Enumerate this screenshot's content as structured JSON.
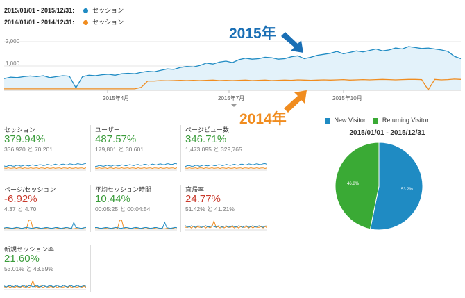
{
  "legend": [
    {
      "range": "2015/01/01 - 2015/12/31:",
      "series": "セッション",
      "color": "#1f8bc3"
    },
    {
      "range": "2014/01/01 - 2014/12/31:",
      "series": "セッション",
      "color": "#f08c1f"
    }
  ],
  "chart_data": {
    "type": "line",
    "ylim": [
      0,
      2000
    ],
    "y_ticks": [
      "2,000",
      "1,000"
    ],
    "x_ticks": [
      "2015年4月",
      "2015年7月",
      "2015年10月"
    ],
    "series": [
      {
        "name": "セッション",
        "period": "2015/01/01 - 2015/12/31",
        "color": "#1f8bc3",
        "values": [
          480,
          540,
          520,
          560,
          590,
          560,
          600,
          520,
          560,
          600,
          580,
          100,
          560,
          620,
          600,
          640,
          660,
          620,
          680,
          700,
          680,
          740,
          780,
          760,
          820,
          880,
          860,
          940,
          980,
          960,
          1020,
          1120,
          1080,
          1160,
          1200,
          1140,
          1260,
          1320,
          1280,
          1300,
          1360,
          1340,
          1280,
          1300,
          1380,
          1420,
          1300,
          1360,
          1440,
          1480,
          1520,
          1600,
          1500,
          1560,
          1620,
          1580,
          1640,
          1700,
          1620,
          1660,
          1740,
          1700,
          1800,
          1760,
          1720,
          1740,
          1700,
          1660,
          1600,
          1400,
          1300
        ]
      },
      {
        "name": "セッション",
        "period": "2014/01/01 - 2014/12/31",
        "color": "#f08c1f",
        "values": [
          60,
          60,
          60,
          60,
          60,
          60,
          60,
          60,
          60,
          60,
          60,
          60,
          60,
          60,
          60,
          60,
          60,
          60,
          60,
          60,
          60,
          120,
          380,
          380,
          400,
          390,
          400,
          410,
          400,
          410,
          400,
          410,
          420,
          400,
          410,
          400,
          410,
          420,
          400,
          410,
          420,
          400,
          410,
          420,
          410,
          430,
          420,
          410,
          420,
          430,
          420,
          430,
          440,
          420,
          430,
          440,
          430,
          440,
          450,
          440,
          430,
          440,
          450,
          450,
          440,
          20,
          450,
          430,
          440,
          460,
          450
        ]
      }
    ]
  },
  "annotations": {
    "y2015": "2015年",
    "y2014": "2014年"
  },
  "metrics": [
    {
      "name": "セッション",
      "value": "379.94%",
      "compare": "336,920 と 70,201",
      "sign": "pos"
    },
    {
      "name": "ユーザー",
      "value": "487.57%",
      "compare": "179,801 と 30,601",
      "sign": "pos"
    },
    {
      "name": "ページビュー数",
      "value": "346.71%",
      "compare": "1,473,095 と 329,765",
      "sign": "pos"
    },
    {
      "name": "ページ/セッション",
      "value": "-6.92%",
      "compare": "4.37 と 4.70",
      "sign": "neg"
    },
    {
      "name": "平均セッション時間",
      "value": "10.44%",
      "compare": "00:05:25 と 00:04:54",
      "sign": "pos"
    },
    {
      "name": "直帰率",
      "value": "24.77%",
      "compare": "51.42% と 41.21%",
      "sign": "neg"
    },
    {
      "name": "新規セッション率",
      "value": "21.60%",
      "compare": "53.01% と 43.59%",
      "sign": "pos"
    }
  ],
  "pie": {
    "title": "2015/01/01 - 2015/12/31",
    "legend": [
      {
        "label": "New Visitor",
        "color": "#1f8bc3"
      },
      {
        "label": "Returning Visitor",
        "color": "#3aaa35"
      }
    ],
    "chart_data": {
      "type": "pie",
      "slices": [
        {
          "label": "New Visitor",
          "value": 53.2,
          "text": "53.2%",
          "color": "#1f8bc3"
        },
        {
          "label": "Returning Visitor",
          "value": 46.8,
          "text": "46.8%",
          "color": "#3aaa35"
        }
      ]
    }
  }
}
